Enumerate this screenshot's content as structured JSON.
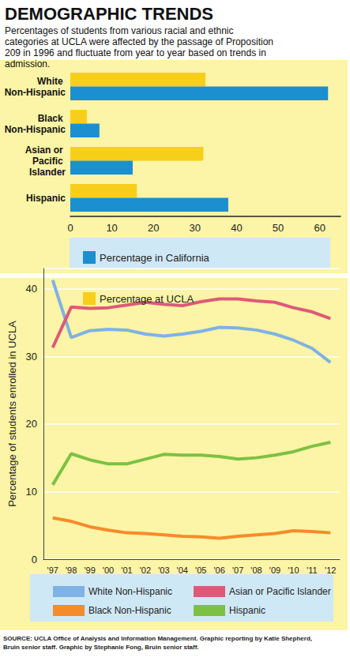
{
  "chart_data": [
    {
      "type": "bar",
      "title": "DEMOGRAPHIC TRENDS",
      "subtitle": "Percentages of students from various racial and ethnic categories at UCLA were affected by the passage of Proposition 209 in 1996 and fluctuate from year to year based on trends in admission.",
      "orientation": "horizontal",
      "categories": [
        "White Non-Hispanic",
        "Black Non-Hispanic",
        "Asian or Pacific Islander",
        "Hispanic"
      ],
      "series": [
        {
          "name": "Percentage in California",
          "color": "#1b8fd0",
          "values": [
            62,
            7,
            15,
            38
          ]
        },
        {
          "name": "Percentage at UCLA",
          "color": "#f7cf1b",
          "values": [
            32.5,
            4,
            32,
            16
          ]
        }
      ],
      "xlim": [
        0,
        65
      ],
      "xticks": [
        0,
        10,
        20,
        30,
        40,
        50,
        60
      ],
      "grid": false,
      "legend": "bottom"
    },
    {
      "type": "line",
      "ylabel": "Percentage of students enrolled in UCLA",
      "categories": [
        "'97",
        "'98",
        "'99",
        "'00",
        "'01",
        "'02",
        "'03",
        "'04",
        "'05",
        "'06",
        "'07",
        "'08",
        "'09",
        "'10",
        "'11",
        "'12"
      ],
      "series": [
        {
          "name": "White Non-Hispanic",
          "color": "#7fb2e5",
          "values": [
            41.3,
            32.8,
            33.8,
            34.0,
            33.9,
            33.3,
            33.0,
            33.3,
            33.7,
            34.3,
            34.2,
            33.9,
            33.3,
            32.4,
            31.2,
            29.1
          ]
        },
        {
          "name": "Asian or Pacific Islander",
          "color": "#dc5a78",
          "values": [
            31.3,
            37.3,
            37.1,
            37.2,
            37.6,
            38.0,
            37.7,
            37.5,
            38.1,
            38.5,
            38.5,
            38.2,
            38.0,
            37.2,
            36.6,
            35.6
          ]
        },
        {
          "name": "Black Non-Hispanic",
          "color": "#f68b2a",
          "values": [
            6.1,
            5.6,
            4.8,
            4.3,
            3.9,
            3.8,
            3.6,
            3.4,
            3.3,
            3.1,
            3.4,
            3.6,
            3.8,
            4.2,
            4.1,
            3.9
          ]
        },
        {
          "name": "Hispanic",
          "color": "#7dc143",
          "values": [
            11.0,
            15.6,
            14.7,
            14.1,
            14.1,
            14.8,
            15.5,
            15.4,
            15.4,
            15.2,
            14.8,
            15.0,
            15.4,
            15.9,
            16.7,
            17.3
          ]
        }
      ],
      "ylim": [
        0,
        43
      ],
      "yticks": [
        0,
        10,
        20,
        30,
        40
      ],
      "grid": true,
      "legend": "bottom",
      "annotations": [
        "SOURCE: UCLA Office of Analysis and Information Management. Graphic reporting by Katie Shepherd, Bruin senior staff. Graphic by Stephanie Fong, Bruin senior staff."
      ]
    }
  ]
}
